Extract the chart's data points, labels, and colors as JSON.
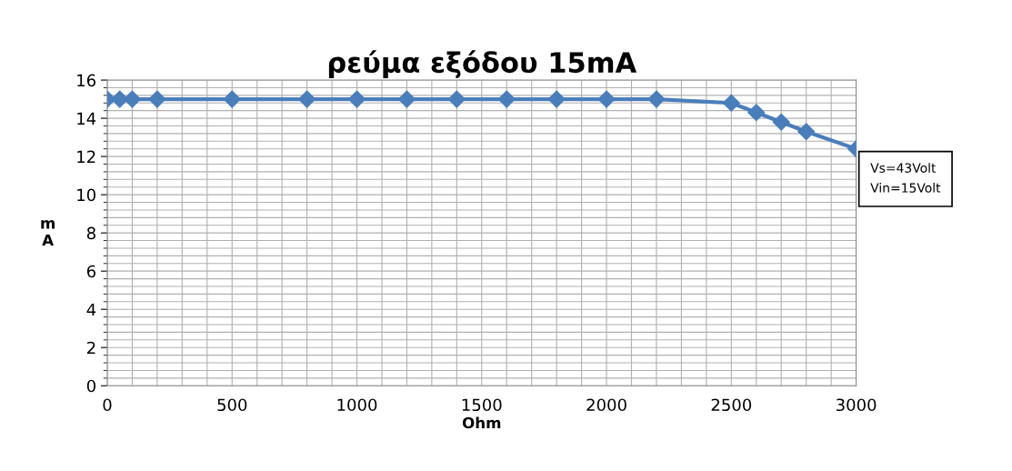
{
  "chart_data": {
    "type": "line",
    "title": "ρεύμα εξόδου 15mA",
    "xlabel": "Ohm",
    "ylabel": "m\nA",
    "x": [
      0,
      50,
      100,
      200,
      500,
      800,
      1000,
      1200,
      1400,
      1600,
      1800,
      2000,
      2200,
      2500,
      2600,
      2700,
      2800,
      3000
    ],
    "series": [
      {
        "color": "#4a7ebb",
        "values": [
          15,
          15,
          15,
          15,
          15,
          15,
          15,
          15,
          15,
          15,
          15,
          15,
          15,
          14.8,
          14.3,
          13.8,
          13.3,
          12.4
        ]
      }
    ],
    "xlim": [
      0,
      3000
    ],
    "xticks": [
      0,
      500,
      1000,
      1500,
      2000,
      2500,
      3000
    ],
    "ylim": [
      0,
      16
    ],
    "yticks": [
      0,
      2,
      4,
      6,
      8,
      10,
      12,
      14,
      16
    ],
    "grid": true,
    "marker": "diamond",
    "line_style": "solid",
    "legend": false,
    "annotations": [
      "Vs=43Volt\nVin=15Volt"
    ]
  }
}
